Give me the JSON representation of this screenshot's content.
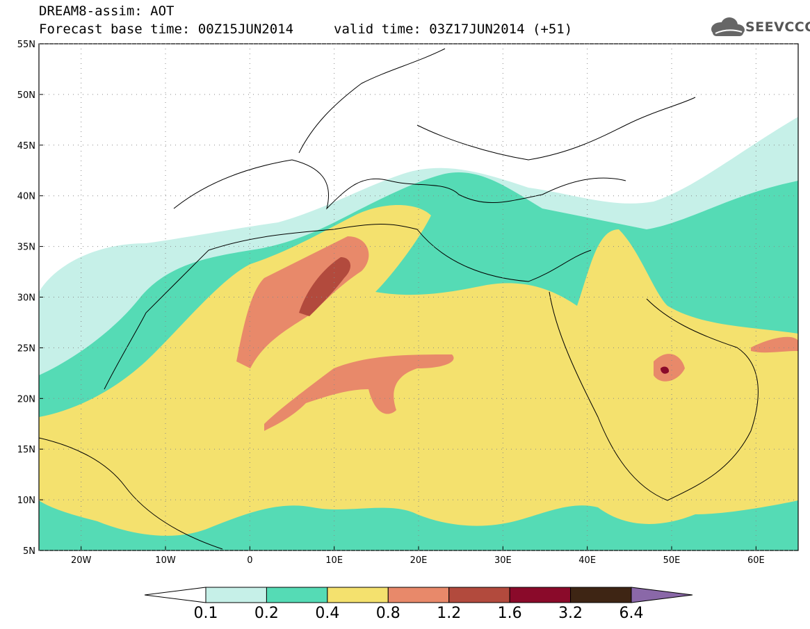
{
  "header": {
    "title": "DREAM8-assim: AOT",
    "base_time": "Forecast base time: 00Z15JUN2014",
    "valid_time": "valid time: 03Z17JUN2014 (+51)"
  },
  "logo": {
    "text": "SEEVCCC",
    "icon": "cloud-icon",
    "color": "#666666"
  },
  "map": {
    "lat_labels": [
      "55N",
      "50N",
      "45N",
      "40N",
      "35N",
      "30N",
      "25N",
      "20N",
      "15N",
      "10N",
      "5N"
    ],
    "lon_labels": [
      "20W",
      "10W",
      "0",
      "10E",
      "20E",
      "30E",
      "40E",
      "50E",
      "60E"
    ],
    "lon_range": [
      -25,
      65
    ],
    "lat_range": [
      5,
      55
    ]
  },
  "colorbar": {
    "labels": [
      "0.1",
      "0.2",
      "0.4",
      "0.8",
      "1.2",
      "1.6",
      "3.2",
      "6.4"
    ],
    "colors": [
      "#ffffff",
      "#c6f0e8",
      "#55dbb5",
      "#f4e16e",
      "#e8896a",
      "#b24a3d",
      "#8a0a2a",
      "#3e2514",
      "#8a68a8"
    ]
  },
  "field_colors": {
    "c1": "#c6f0e8",
    "c2": "#55dbb5",
    "c3": "#f4e16e",
    "c4": "#e8896a",
    "c5": "#b24a3d",
    "c6": "#8a0a2a"
  }
}
